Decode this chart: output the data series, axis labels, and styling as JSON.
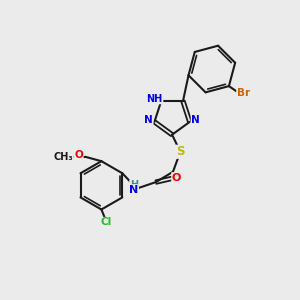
{
  "bg_color": "#ebebeb",
  "bond_color": "#1a1a1a",
  "atom_colors": {
    "N": "#0000ee",
    "O": "#ee0000",
    "S": "#bbbb00",
    "Br": "#cc6600",
    "Cl": "#22bb22",
    "C": "#1a1a1a",
    "H": "#448888"
  },
  "scale": 10
}
